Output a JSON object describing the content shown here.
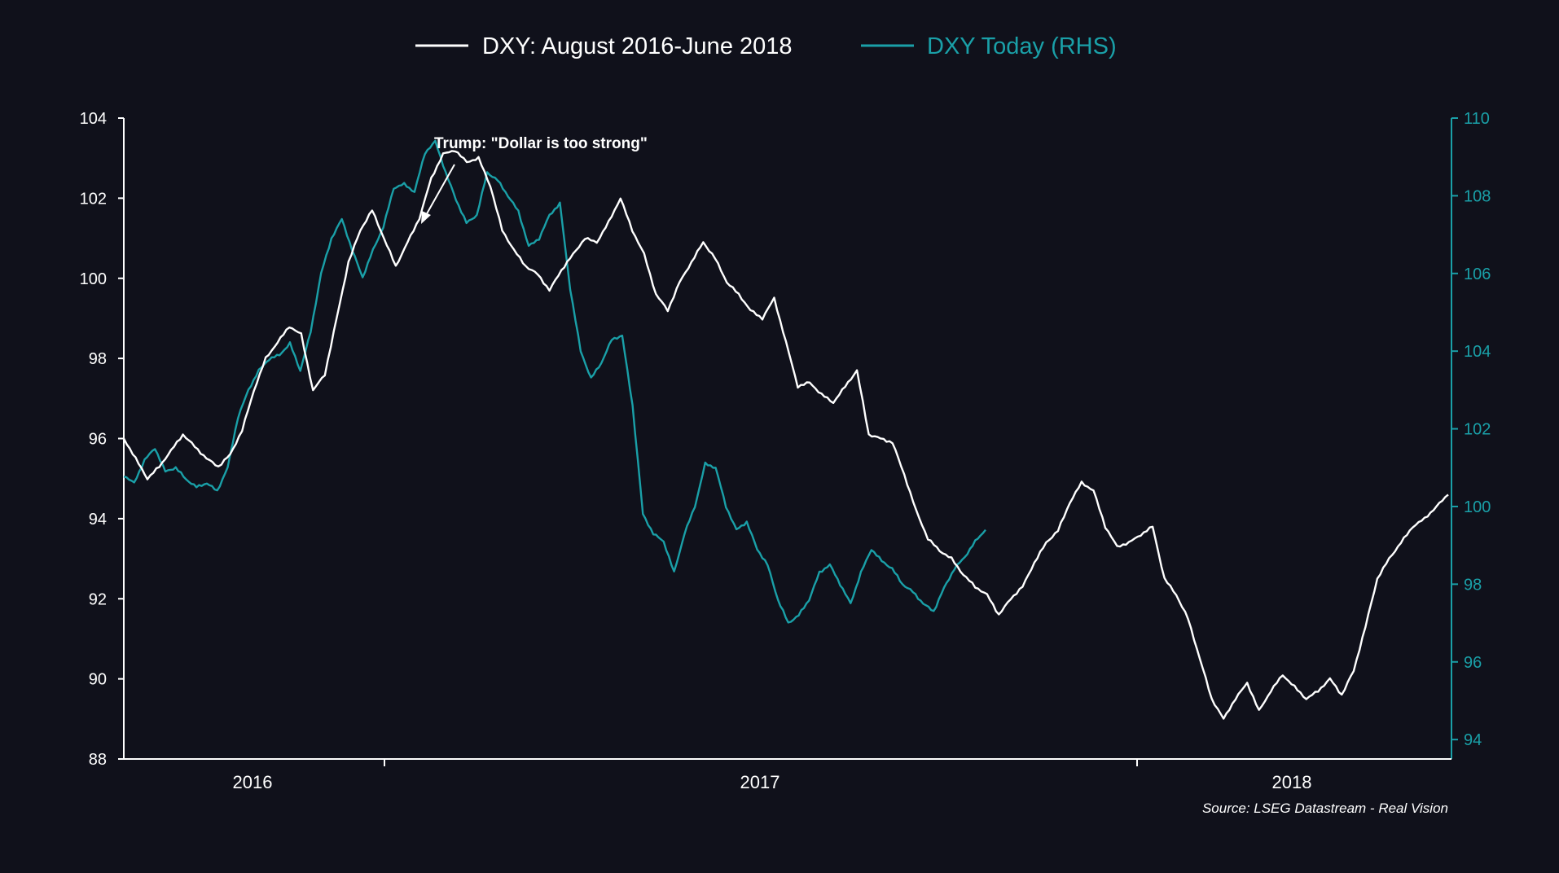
{
  "chart_data": {
    "type": "line",
    "background": "#10111b",
    "legend_position": "top-center",
    "grid": false,
    "annotation": "Trump: \"Dollar is too strong\"",
    "source": "Source: LSEG Datastream - Real Vision",
    "x_axis": {
      "tick_labels": [
        "2016",
        "2017",
        "2018"
      ]
    },
    "y_left": {
      "ylim": [
        88,
        104
      ],
      "ticks": [
        88,
        90,
        92,
        94,
        96,
        98,
        100,
        102,
        104
      ],
      "color": "#ffffff"
    },
    "y_right": {
      "ylim": [
        93.5,
        110
      ],
      "ticks": [
        94,
        96,
        98,
        100,
        102,
        104,
        106,
        108,
        110
      ],
      "color": "#1aa0a8"
    },
    "series": [
      {
        "name": "DXY: August 2016-June 2018",
        "axis": "left",
        "color": "#ffffff",
        "values": [
          96.0,
          95.5,
          95.0,
          95.3,
          95.7,
          96.1,
          95.8,
          95.5,
          95.3,
          95.6,
          96.2,
          97.2,
          98.0,
          98.4,
          98.8,
          98.6,
          97.2,
          97.6,
          99.0,
          100.4,
          101.2,
          101.7,
          101.0,
          100.3,
          100.9,
          101.5,
          102.5,
          103.1,
          103.2,
          102.9,
          103.0,
          102.3,
          101.2,
          100.7,
          100.3,
          100.1,
          99.7,
          100.2,
          100.6,
          101.0,
          100.9,
          101.4,
          102.0,
          101.2,
          100.6,
          99.6,
          99.2,
          99.9,
          100.4,
          100.9,
          100.5,
          99.9,
          99.6,
          99.2,
          99.0,
          99.5,
          98.4,
          97.3,
          97.4,
          97.1,
          96.9,
          97.3,
          97.7,
          96.1,
          96.0,
          95.9,
          95.1,
          94.2,
          93.5,
          93.2,
          93.0,
          92.6,
          92.3,
          92.1,
          91.6,
          92.0,
          92.3,
          92.9,
          93.4,
          93.7,
          94.4,
          94.9,
          94.7,
          93.8,
          93.3,
          93.4,
          93.6,
          93.8,
          92.5,
          92.1,
          91.5,
          90.5,
          89.5,
          89.0,
          89.5,
          89.9,
          89.2,
          89.7,
          90.1,
          89.8,
          89.5,
          89.7,
          90.0,
          89.6,
          90.2,
          91.3,
          92.5,
          93.0,
          93.4,
          93.8,
          94.0,
          94.3,
          94.6
        ]
      },
      {
        "name": "DXY Today (RHS)",
        "axis": "right",
        "color": "#1aa0a8",
        "values": [
          100.8,
          100.6,
          101.2,
          101.5,
          100.9,
          101.0,
          100.7,
          100.5,
          100.6,
          100.4,
          101.0,
          102.3,
          103.0,
          103.5,
          103.8,
          103.9,
          104.2,
          103.5,
          104.5,
          106.0,
          106.9,
          107.4,
          106.6,
          105.9,
          106.6,
          107.2,
          108.2,
          108.3,
          108.1,
          109.1,
          109.4,
          108.6,
          107.9,
          107.3,
          107.5,
          108.6,
          108.4,
          108.0,
          107.6,
          106.7,
          106.9,
          107.5,
          107.8,
          105.6,
          104.0,
          103.3,
          103.7,
          104.3,
          104.4,
          102.6,
          99.8,
          99.3,
          99.1,
          98.3,
          99.3,
          100.0,
          101.1,
          101.0,
          100.0,
          99.4,
          99.6,
          98.9,
          98.5,
          97.6,
          97.0,
          97.2,
          97.6,
          98.3,
          98.5,
          98.0,
          97.5,
          98.3,
          98.9,
          98.6,
          98.4,
          98.0,
          97.8,
          97.5,
          97.3,
          97.9,
          98.4,
          98.7,
          99.1,
          99.4
        ]
      }
    ]
  }
}
